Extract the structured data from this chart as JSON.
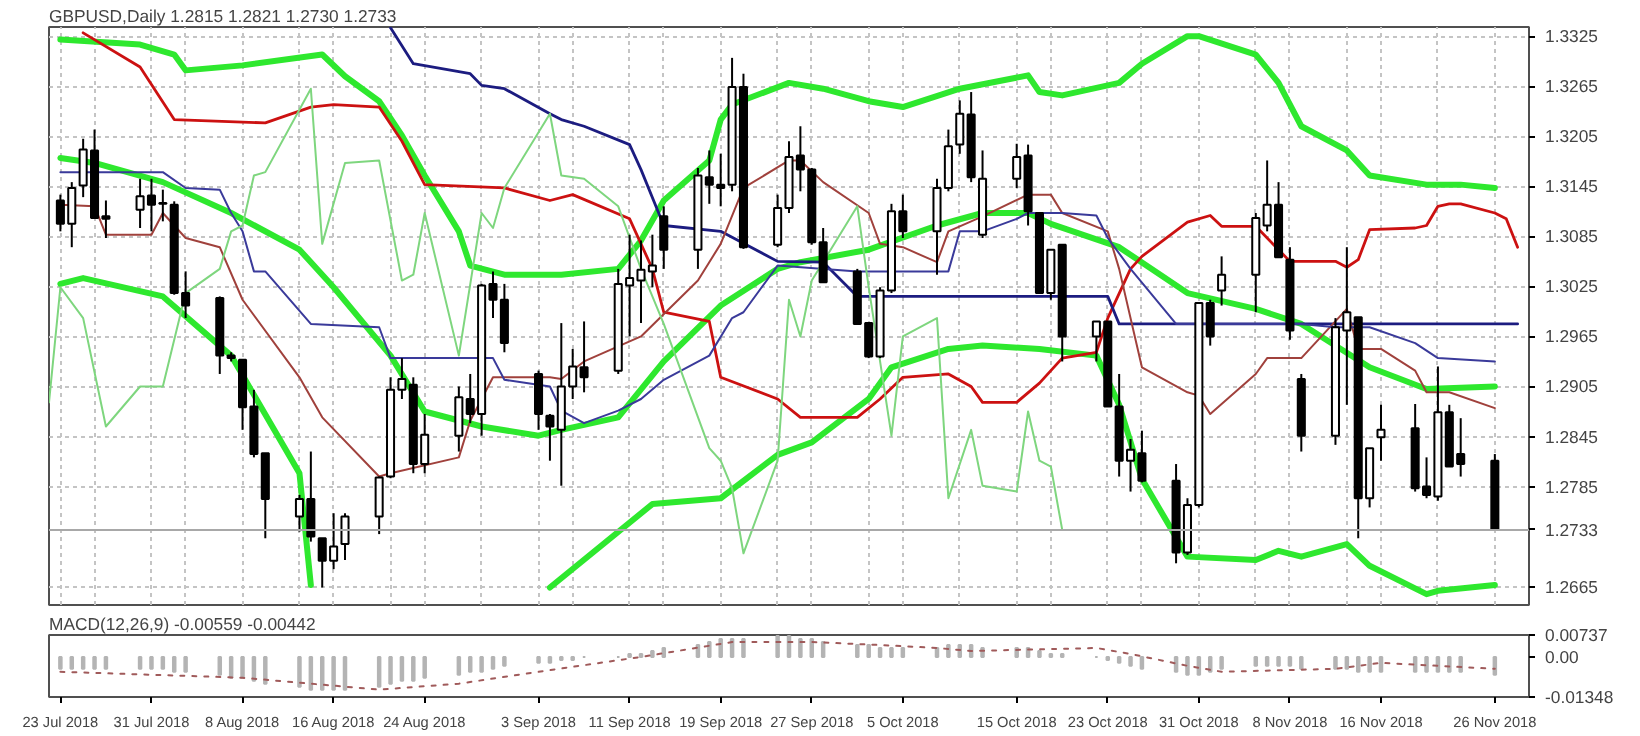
{
  "chart_data": [
    {
      "type": "candlestick",
      "title": "GBPUSD,Daily  1.2815 1.2821 1.2730 1.2733",
      "color": "#000000",
      "x": [
        "2018-07-23",
        "2018-07-24",
        "2018-07-25",
        "2018-07-26",
        "2018-07-27",
        "2018-07-30",
        "2018-07-31",
        "2018-08-01",
        "2018-08-02",
        "2018-08-03",
        "2018-08-06",
        "2018-08-07",
        "2018-08-08",
        "2018-08-09",
        "2018-08-10",
        "2018-08-13",
        "2018-08-14",
        "2018-08-15",
        "2018-08-16",
        "2018-08-17",
        "2018-08-20",
        "2018-08-21",
        "2018-08-22",
        "2018-08-23",
        "2018-08-24",
        "2018-08-27",
        "2018-08-28",
        "2018-08-29",
        "2018-08-30",
        "2018-08-31",
        "2018-09-03",
        "2018-09-04",
        "2018-09-05",
        "2018-09-06",
        "2018-09-07",
        "2018-09-10",
        "2018-09-11",
        "2018-09-12",
        "2018-09-13",
        "2018-09-14",
        "2018-09-17",
        "2018-09-18",
        "2018-09-19",
        "2018-09-20",
        "2018-09-21",
        "2018-09-24",
        "2018-09-25",
        "2018-09-26",
        "2018-09-27",
        "2018-09-28",
        "2018-10-01",
        "2018-10-02",
        "2018-10-03",
        "2018-10-04",
        "2018-10-05",
        "2018-10-08",
        "2018-10-09",
        "2018-10-10",
        "2018-10-11",
        "2018-10-12",
        "2018-10-15",
        "2018-10-16",
        "2018-10-17",
        "2018-10-18",
        "2018-10-19",
        "2018-10-22",
        "2018-10-23",
        "2018-10-24",
        "2018-10-25",
        "2018-10-26",
        "2018-10-29",
        "2018-10-30",
        "2018-10-31",
        "2018-11-01",
        "2018-11-02",
        "2018-11-05",
        "2018-11-06",
        "2018-11-07",
        "2018-11-08",
        "2018-11-09",
        "2018-11-12",
        "2018-11-13",
        "2018-11-14",
        "2018-11-15",
        "2018-11-16",
        "2018-11-19",
        "2018-11-20",
        "2018-11-21",
        "2018-11-22",
        "2018-11-23",
        "2018-11-26"
      ],
      "ohlc": [
        [
          1.3128,
          1.3135,
          1.3091,
          1.31
        ],
        [
          1.31,
          1.315,
          1.3072,
          1.3143
        ],
        [
          1.3146,
          1.3202,
          1.3132,
          1.3189
        ],
        [
          1.3188,
          1.3213,
          1.3106,
          1.3107
        ],
        [
          1.3109,
          1.3128,
          1.3083,
          1.3106
        ],
        [
          1.3117,
          1.3154,
          1.3095,
          1.3133
        ],
        [
          1.3134,
          1.3154,
          1.3091,
          1.3123
        ],
        [
          1.3124,
          1.3141,
          1.3103,
          1.3125
        ],
        [
          1.3123,
          1.3127,
          1.3015,
          1.3017
        ],
        [
          1.3017,
          1.3043,
          1.2987,
          1.3002
        ],
        [
          1.3011,
          1.3013,
          1.292,
          1.2942
        ],
        [
          1.2942,
          1.2946,
          1.2935,
          1.2939
        ],
        [
          1.2937,
          1.2937,
          1.2853,
          1.288
        ],
        [
          1.2881,
          1.2901,
          1.282,
          1.2824
        ],
        [
          1.2825,
          1.2825,
          1.2723,
          1.277
        ],
        [
          1.2749,
          1.2775,
          1.2731,
          1.277
        ],
        [
          1.277,
          1.2827,
          1.2719,
          1.2725
        ],
        [
          1.2723,
          1.2723,
          1.2664,
          1.2696
        ],
        [
          1.2696,
          1.2753,
          1.2686,
          1.2713
        ],
        [
          1.2716,
          1.2753,
          1.2697,
          1.2749
        ],
        [
          1.2749,
          1.2797,
          1.2728,
          1.2796
        ],
        [
          1.2797,
          1.2916,
          1.2795,
          1.2901
        ],
        [
          1.2901,
          1.2939,
          1.289,
          1.2914
        ],
        [
          1.2907,
          1.2916,
          1.2801,
          1.2812
        ],
        [
          1.2812,
          1.2872,
          1.2801,
          1.2847
        ],
        [
          1.2846,
          1.2905,
          1.2827,
          1.2892
        ],
        [
          1.289,
          1.292,
          1.2861,
          1.2872
        ],
        [
          1.2872,
          1.3028,
          1.2846,
          1.3026
        ],
        [
          1.3028,
          1.3043,
          1.2987,
          1.3009
        ],
        [
          1.3009,
          1.3028,
          1.2946,
          1.2957
        ],
        [
          1.292,
          1.2924,
          1.2853,
          1.2872
        ],
        [
          1.287,
          1.2872,
          1.2816,
          1.2857
        ],
        [
          1.2853,
          1.2981,
          1.2786,
          1.2905
        ],
        [
          1.2905,
          1.295,
          1.289,
          1.2929
        ],
        [
          1.2928,
          1.2983,
          1.2898,
          1.2916
        ],
        [
          1.2924,
          1.3046,
          1.292,
          1.3028
        ],
        [
          1.3026,
          1.3087,
          1.2965,
          1.3035
        ],
        [
          1.3032,
          1.308,
          1.2981,
          1.3045
        ],
        [
          1.3043,
          1.3087,
          1.3024,
          1.305
        ],
        [
          1.3109,
          1.3121,
          1.3046,
          1.3069
        ],
        [
          1.3069,
          1.3167,
          1.3046,
          1.3158
        ],
        [
          1.3156,
          1.3188,
          1.3124,
          1.3147
        ],
        [
          1.3147,
          1.3184,
          1.3121,
          1.3143
        ],
        [
          1.3147,
          1.3299,
          1.3139,
          1.3264
        ],
        [
          1.3264,
          1.328,
          1.307,
          1.3072
        ],
        [
          1.3075,
          1.3135,
          1.3072,
          1.3119
        ],
        [
          1.3119,
          1.3199,
          1.3113,
          1.318
        ],
        [
          1.3182,
          1.3217,
          1.3139,
          1.3165
        ],
        [
          1.3165,
          1.3167,
          1.3075,
          1.3078
        ],
        [
          1.3078,
          1.3095,
          1.303,
          1.303
        ],
        [
          1.3043,
          1.3046,
          1.298,
          1.298
        ],
        [
          1.2981,
          1.2981,
          1.2939,
          1.2941
        ],
        [
          1.2941,
          1.3024,
          1.2939,
          1.302
        ],
        [
          1.302,
          1.3124,
          1.3017,
          1.3115
        ],
        [
          1.3115,
          1.3135,
          1.3083,
          1.3091
        ],
        [
          1.3091,
          1.3154,
          1.3039,
          1.3143
        ],
        [
          1.3143,
          1.3213,
          1.3139,
          1.3193
        ],
        [
          1.3195,
          1.3248,
          1.3184,
          1.3232
        ],
        [
          1.3231,
          1.3258,
          1.315,
          1.3156
        ],
        [
          1.3087,
          1.3188,
          1.3083,
          1.3154
        ],
        [
          1.3154,
          1.3196,
          1.3143,
          1.318
        ],
        [
          1.3182,
          1.3195,
          1.3098,
          1.3115
        ],
        [
          1.3113,
          1.3113,
          1.3017,
          1.3017
        ],
        [
          1.3017,
          1.3069,
          1.3009,
          1.3069
        ],
        [
          1.3075,
          1.3075,
          1.2935,
          1.2965
        ],
        [
          1.2965,
          1.2983,
          1.2935,
          1.2983
        ],
        [
          1.2983,
          1.2983,
          1.2881,
          1.2881
        ],
        [
          1.2881,
          1.292,
          1.2797,
          1.2816
        ],
        [
          1.2816,
          1.2842,
          1.2779,
          1.2829
        ],
        [
          1.2825,
          1.2852,
          1.279,
          1.2792
        ],
        [
          1.2792,
          1.2812,
          1.2693,
          1.2706
        ],
        [
          1.2706,
          1.2771,
          1.2703,
          1.2763
        ],
        [
          1.2763,
          1.3005,
          1.276,
          1.3005
        ],
        [
          1.3005,
          1.3009,
          1.2954,
          1.2965
        ],
        [
          1.302,
          1.3061,
          1.3002,
          1.3039
        ],
        [
          1.3039,
          1.3113,
          1.2994,
          1.3107
        ],
        [
          1.3098,
          1.3176,
          1.3091,
          1.3123
        ],
        [
          1.3123,
          1.315,
          1.306,
          1.306
        ],
        [
          1.3057,
          1.3072,
          1.2961,
          1.2972
        ],
        [
          1.2914,
          1.292,
          1.2827,
          1.2846
        ],
        [
          1.2846,
          1.2987,
          1.2835,
          1.2976
        ],
        [
          1.2972,
          1.3072,
          1.2883,
          1.2994
        ],
        [
          1.2988,
          1.2988,
          1.2723,
          1.2771
        ],
        [
          1.2771,
          1.2831,
          1.276,
          1.2831
        ],
        [
          1.2844,
          1.2883,
          1.2816,
          1.2853
        ],
        [
          1.2855,
          1.2884,
          1.2779,
          1.2783
        ],
        [
          1.2785,
          1.282,
          1.2771,
          1.2775
        ],
        [
          1.2773,
          1.2929,
          1.2768,
          1.2874
        ],
        [
          1.2874,
          1.2883,
          1.2809,
          1.2809
        ],
        [
          1.2824,
          1.2867,
          1.2797,
          1.2812
        ],
        [
          1.2816,
          1.2824,
          1.2733,
          1.2733
        ]
      ],
      "series": [
        {
          "type": "line",
          "color": "#2ee82e",
          "x": [
            "2018-07-23",
            "2018-07-30",
            "2018-08-02",
            "2018-08-03",
            "2018-08-08",
            "2018-08-15",
            "2018-08-17",
            "2018-08-20",
            "2018-08-22",
            "2018-08-24",
            "2018-08-27",
            "2018-08-28",
            "2018-08-31",
            "2018-09-05",
            "2018-09-10",
            "2018-09-12",
            "2018-09-14",
            "2018-09-18",
            "2018-09-19",
            "2018-09-20",
            "2018-09-25",
            "2018-09-28",
            "2018-10-02",
            "2018-10-05",
            "2018-10-10",
            "2018-10-16",
            "2018-10-17",
            "2018-10-19",
            "2018-10-24",
            "2018-10-26",
            "2018-10-30",
            "2018-10-31",
            "2018-11-05",
            "2018-11-07",
            "2018-11-09",
            "2018-11-13",
            "2018-11-15",
            "2018-11-20",
            "2018-11-23",
            "2018-11-26"
          ],
          "values": [
            1.3321,
            1.3315,
            1.3303,
            1.3284,
            1.329,
            1.3303,
            1.3277,
            1.3247,
            1.3206,
            1.3158,
            1.3091,
            1.305,
            1.3039,
            1.3039,
            1.3046,
            1.308,
            1.3128,
            1.3176,
            1.3225,
            1.3243,
            1.3269,
            1.3262,
            1.3247,
            1.324,
            1.3262,
            1.3278,
            1.3258,
            1.3254,
            1.3269,
            1.3292,
            1.3325,
            1.3325,
            1.3303,
            1.3269,
            1.3217,
            1.3188,
            1.3158,
            1.3147,
            1.3147,
            1.3143
          ]
        },
        {
          "type": "line",
          "color": "#2ee82e",
          "x": [
            "2018-07-23",
            "2018-07-26",
            "2018-08-01",
            "2018-08-07",
            "2018-08-13",
            "2018-08-16",
            "2018-08-21",
            "2018-08-24",
            "2018-08-29",
            "2018-09-03",
            "2018-09-05",
            "2018-09-10",
            "2018-09-14",
            "2018-09-19",
            "2018-09-24",
            "2018-09-26",
            "2018-10-02",
            "2018-10-08",
            "2018-10-12",
            "2018-10-16",
            "2018-10-18",
            "2018-10-24",
            "2018-10-30",
            "2018-11-05",
            "2018-11-09",
            "2018-11-15",
            "2018-11-20",
            "2018-11-26"
          ],
          "values": [
            1.3179,
            1.3173,
            1.315,
            1.3113,
            1.3069,
            1.3024,
            1.2942,
            1.2875,
            1.2857,
            1.2846,
            1.2853,
            1.2868,
            1.2935,
            1.3002,
            1.3046,
            1.3054,
            1.3069,
            1.3098,
            1.3113,
            1.3113,
            1.31,
            1.3072,
            1.3017,
            1.2998,
            1.298,
            1.2928,
            1.2902,
            1.2905
          ]
        },
        {
          "type": "line",
          "color": "#2ee82e",
          "x": [
            "2018-07-23",
            "2018-07-25",
            "2018-08-01",
            "2018-08-07",
            "2018-08-13",
            "2018-08-14",
            "2018-08-15",
            "2018-09-04",
            "2018-09-13",
            "2018-09-19",
            "2018-09-24",
            "2018-09-27",
            "2018-10-02",
            "2018-10-04",
            "2018-10-09",
            "2018-10-12",
            "2018-10-17",
            "2018-10-22",
            "2018-10-24",
            "2018-10-26",
            "2018-10-30",
            "2018-11-05",
            "2018-11-07",
            "2018-11-09",
            "2018-11-13",
            "2018-11-15",
            "2018-11-20",
            "2018-11-21",
            "2018-11-26"
          ],
          "values": [
            1.3028,
            1.3035,
            1.3013,
            1.2942,
            1.2801,
            1.2667,
            null,
            1.2664,
            1.2764,
            1.2771,
            1.2823,
            1.2838,
            1.289,
            1.2928,
            1.295,
            1.2954,
            1.295,
            1.2942,
            1.2883,
            1.2794,
            1.2701,
            1.2697,
            1.2708,
            1.2701,
            1.2716,
            1.269,
            1.2656,
            1.266,
            1.2667
          ]
        },
        {
          "type": "line",
          "color": "#cc1111",
          "x": [
            "2018-07-25",
            "2018-07-30",
            "2018-08-02",
            "2018-08-10",
            "2018-08-14",
            "2018-08-16",
            "2018-08-20",
            "2018-08-22",
            "2018-08-24",
            "2018-08-31",
            "2018-09-04",
            "2018-09-06",
            "2018-09-11",
            "2018-09-13",
            "2018-09-14",
            "2018-09-18",
            "2018-09-19",
            "2018-09-24",
            "2018-09-26",
            "2018-10-01",
            "2018-10-03",
            "2018-10-05",
            "2018-10-09",
            "2018-10-11",
            "2018-10-12",
            "2018-10-15",
            "2018-10-17",
            "2018-10-19",
            "2018-10-22",
            "2018-10-23",
            "2018-10-25",
            "2018-10-26",
            "2018-10-30",
            "2018-11-01",
            "2018-11-02",
            "2018-11-05",
            "2018-11-07",
            "2018-11-08",
            "2018-11-12",
            "2018-11-13",
            "2018-11-14",
            "2018-11-15",
            "2018-11-19",
            "2018-11-20",
            "2018-11-21",
            "2018-11-22",
            "2018-11-23",
            "2018-11-26",
            "2018-11-27",
            "2018-11-28"
          ],
          "values": [
            1.3329,
            1.3288,
            1.3225,
            1.3221,
            1.324,
            1.3243,
            1.324,
            1.3199,
            1.3147,
            1.3143,
            1.3128,
            1.3135,
            1.3106,
            1.3046,
            1.2994,
            1.2983,
            1.2916,
            1.289,
            1.2868,
            1.2868,
            1.289,
            1.2916,
            1.292,
            1.2905,
            1.2886,
            1.2886,
            1.2909,
            1.2939,
            1.2946,
            1.2987,
            1.3046,
            1.3061,
            1.3102,
            1.311,
            1.3097,
            1.3097,
            1.3069,
            1.3055,
            1.3055,
            1.3048,
            1.3057,
            1.3093,
            1.3095,
            1.3098,
            1.3121,
            1.3124,
            1.3124,
            1.3113,
            1.3106,
            1.3072
          ]
        },
        {
          "type": "line",
          "color": "#1c1c80",
          "x": [
            "2018-08-21",
            "2018-08-23",
            "2018-08-28",
            "2018-08-29",
            "2018-08-31",
            "2018-09-04",
            "2018-09-05",
            "2018-09-07",
            "2018-09-11",
            "2018-09-12",
            "2018-09-14",
            "2018-09-19",
            "2018-09-24",
            "2018-09-28",
            "2018-10-01",
            "2018-10-23",
            "2018-10-24",
            "2018-11-28"
          ],
          "values": [
            1.3335,
            1.3292,
            1.328,
            1.3266,
            1.3262,
            1.3232,
            1.3225,
            1.3217,
            1.3195,
            1.3165,
            1.3098,
            1.3091,
            1.3055,
            1.3054,
            1.3013,
            1.3013,
            1.298,
            1.298
          ]
        },
        {
          "type": "line",
          "color": "#a0413c",
          "x": [
            "2018-07-23",
            "2018-07-26",
            "2018-07-27",
            "2018-07-31",
            "2018-08-01",
            "2018-08-03",
            "2018-08-06",
            "2018-08-08",
            "2018-08-13",
            "2018-08-15",
            "2018-08-20",
            "2018-08-21",
            "2018-08-27",
            "2018-08-28",
            "2018-08-30",
            "2018-09-04",
            "2018-09-05",
            "2018-09-07",
            "2018-09-12",
            "2018-09-17",
            "2018-09-19",
            "2018-09-21",
            "2018-09-25",
            "2018-09-26",
            "2018-09-28",
            "2018-10-02",
            "2018-10-03",
            "2018-10-05",
            "2018-10-08",
            "2018-10-09",
            "2018-10-12",
            "2018-10-16",
            "2018-10-18",
            "2018-10-19",
            "2018-10-23",
            "2018-10-24",
            "2018-10-26",
            "2018-10-30",
            "2018-10-31",
            "2018-11-01",
            "2018-11-05",
            "2018-11-06",
            "2018-11-09",
            "2018-11-13",
            "2018-11-14",
            "2018-11-16",
            "2018-11-19",
            "2018-11-20",
            "2018-11-22",
            "2018-11-26"
          ],
          "values": [
            1.3123,
            1.3121,
            1.3087,
            1.3087,
            1.3113,
            1.3083,
            1.3072,
            1.3009,
            1.2916,
            1.2868,
            1.2797,
            1.2801,
            1.282,
            1.2864,
            1.2916,
            1.2916,
            1.2914,
            1.2935,
            1.2965,
            1.3032,
            1.3076,
            1.3143,
            1.3176,
            1.3176,
            1.315,
            1.3113,
            1.3076,
            1.3072,
            1.3054,
            1.3091,
            1.3109,
            1.3135,
            1.3135,
            1.3113,
            1.3091,
            1.3046,
            1.2928,
            1.2898,
            1.2894,
            1.2872,
            1.292,
            1.2939,
            1.2939,
            1.2998,
            1.295,
            1.295,
            1.2924,
            1.2898,
            1.2898,
            1.2879
          ]
        },
        {
          "type": "line",
          "color": "#3a3a9a",
          "x": [
            "2018-07-23",
            "2018-08-01",
            "2018-08-03",
            "2018-08-06",
            "2018-08-07",
            "2018-08-08",
            "2018-08-09",
            "2018-08-10",
            "2018-08-14",
            "2018-08-20",
            "2018-08-21",
            "2018-08-30",
            "2018-08-31",
            "2018-09-04",
            "2018-09-05",
            "2018-09-07",
            "2018-09-10",
            "2018-09-12",
            "2018-09-14",
            "2018-09-18",
            "2018-09-20",
            "2018-09-21",
            "2018-09-24",
            "2018-10-01",
            "2018-10-09",
            "2018-10-10",
            "2018-10-12",
            "2018-10-15",
            "2018-10-16",
            "2018-10-19",
            "2018-10-22",
            "2018-10-23",
            "2018-10-25",
            "2018-10-29",
            "2018-11-09",
            "2018-11-12",
            "2018-11-15",
            "2018-11-19",
            "2018-11-21",
            "2018-11-26"
          ],
          "values": [
            1.3162,
            1.3162,
            1.3143,
            1.3141,
            1.3113,
            1.3091,
            1.3043,
            1.3043,
            1.298,
            1.2976,
            1.2939,
            1.2939,
            1.2913,
            1.2905,
            1.2876,
            1.2861,
            1.2876,
            1.289,
            1.2913,
            1.2942,
            1.2987,
            1.2994,
            1.305,
            1.3043,
            1.3043,
            1.3091,
            1.3091,
            1.3106,
            1.3113,
            1.3113,
            1.311,
            1.3083,
            1.3046,
            1.298,
            1.298,
            1.2976,
            1.2976,
            1.2957,
            1.2939,
            1.2935
          ]
        },
        {
          "type": "line",
          "color": "#7ed67e",
          "x": [
            "2018-07-22",
            "2018-07-23",
            "2018-07-25",
            "2018-07-27",
            "2018-07-30",
            "2018-08-01",
            "2018-08-03",
            "2018-08-06",
            "2018-08-07",
            "2018-08-08",
            "2018-08-09",
            "2018-08-10",
            "2018-08-14",
            "2018-08-15",
            "2018-08-17",
            "2018-08-20",
            "2018-08-22",
            "2018-08-23",
            "2018-08-24",
            "2018-08-27",
            "2018-08-29",
            "2018-08-30",
            "2018-08-31",
            "2018-09-04",
            "2018-09-05",
            "2018-09-07",
            "2018-09-10",
            "2018-09-12",
            "2018-09-14",
            "2018-09-18",
            "2018-09-19",
            "2018-09-20",
            "2018-09-21",
            "2018-09-24",
            "2018-09-25",
            "2018-09-26",
            "2018-09-27",
            "2018-10-01",
            "2018-10-02",
            "2018-10-04",
            "2018-10-05",
            "2018-10-08",
            "2018-10-09",
            "2018-10-11",
            "2018-10-12",
            "2018-10-15",
            "2018-10-16",
            "2018-10-17",
            "2018-10-18",
            "2018-10-19"
          ],
          "values": [
            1.2886,
            1.3024,
            1.2987,
            1.2857,
            1.2905,
            1.2905,
            1.3017,
            1.3046,
            1.3091,
            1.3098,
            1.3158,
            1.3162,
            1.3262,
            1.3076,
            1.3173,
            1.3176,
            1.3032,
            1.3039,
            1.3113,
            1.2942,
            1.3113,
            1.3095,
            1.3143,
            1.3232,
            1.3158,
            1.3154,
            1.3121,
            1.3046,
            1.298,
            1.2831,
            1.2816,
            1.2783,
            1.2705,
            1.2816,
            1.3009,
            1.2965,
            1.3032,
            1.3121,
            1.3024,
            1.2846,
            1.2965,
            1.2987,
            1.2771,
            1.2853,
            1.2786,
            1.2779,
            1.2875,
            1.2816,
            1.2809,
            1.2733
          ]
        }
      ],
      "ref_lines": [
        {
          "axis": "y",
          "value": 1.2733,
          "label": "1.2733",
          "color": "#a8a8a8"
        }
      ],
      "xlim": [
        "2018-07-22",
        "2018-11-29"
      ],
      "ylim": [
        1.2643,
        1.3336
      ],
      "xticks": [
        {
          "value": "2018-07-23",
          "label": null
        },
        {
          "value": "2018-07-26",
          "label": null
        },
        {
          "value": "2018-07-31",
          "label": null
        },
        {
          "value": "2018-08-03",
          "label": null
        },
        {
          "value": "2018-08-08",
          "label": null
        },
        {
          "value": "2018-08-13",
          "label": null
        },
        {
          "value": "2018-08-16",
          "label": null
        },
        {
          "value": "2018-08-21",
          "label": null
        },
        {
          "value": "2018-08-24",
          "label": null
        },
        {
          "value": "2018-08-29",
          "label": null
        },
        {
          "value": "2018-09-03",
          "label": null
        },
        {
          "value": "2018-09-06",
          "label": null
        },
        {
          "value": "2018-09-11",
          "label": null
        },
        {
          "value": "2018-09-14",
          "label": null
        },
        {
          "value": "2018-09-19",
          "label": null
        },
        {
          "value": "2018-09-24",
          "label": null
        },
        {
          "value": "2018-09-27",
          "label": null
        },
        {
          "value": "2018-10-02",
          "label": null
        },
        {
          "value": "2018-10-05",
          "label": null
        },
        {
          "value": "2018-10-10",
          "label": null
        },
        {
          "value": "2018-10-15",
          "label": null
        },
        {
          "value": "2018-10-18",
          "label": null
        },
        {
          "value": "2018-10-23",
          "label": null
        },
        {
          "value": "2018-10-26",
          "label": null
        },
        {
          "value": "2018-10-31",
          "label": null
        },
        {
          "value": "2018-11-05",
          "label": null
        },
        {
          "value": "2018-11-08",
          "label": null
        },
        {
          "value": "2018-11-13",
          "label": null
        },
        {
          "value": "2018-11-16",
          "label": null
        },
        {
          "value": "2018-11-21",
          "label": null
        },
        {
          "value": "2018-11-26",
          "label": null
        }
      ],
      "yticks": [
        1.3325,
        1.3265,
        1.3205,
        1.3145,
        1.3085,
        1.3025,
        1.2965,
        1.2905,
        1.2845,
        1.2785,
        1.2665
      ],
      "tick_labels": "y",
      "grid": true
    },
    {
      "type": "bar",
      "title": "MACD(12,26,9) -0.00559 -0.00442",
      "x": [
        "2018-07-23",
        "2018-07-24",
        "2018-07-25",
        "2018-07-26",
        "2018-07-27",
        "2018-07-30",
        "2018-07-31",
        "2018-08-01",
        "2018-08-02",
        "2018-08-03",
        "2018-08-06",
        "2018-08-07",
        "2018-08-08",
        "2018-08-09",
        "2018-08-10",
        "2018-08-13",
        "2018-08-14",
        "2018-08-15",
        "2018-08-16",
        "2018-08-17",
        "2018-08-20",
        "2018-08-21",
        "2018-08-22",
        "2018-08-23",
        "2018-08-24",
        "2018-08-27",
        "2018-08-28",
        "2018-08-29",
        "2018-08-30",
        "2018-08-31",
        "2018-09-03",
        "2018-09-04",
        "2018-09-05",
        "2018-09-06",
        "2018-09-07",
        "2018-09-10",
        "2018-09-11",
        "2018-09-12",
        "2018-09-13",
        "2018-09-14",
        "2018-09-17",
        "2018-09-18",
        "2018-09-19",
        "2018-09-20",
        "2018-09-21",
        "2018-09-24",
        "2018-09-25",
        "2018-09-26",
        "2018-09-27",
        "2018-09-28",
        "2018-10-01",
        "2018-10-02",
        "2018-10-03",
        "2018-10-04",
        "2018-10-05",
        "2018-10-08",
        "2018-10-09",
        "2018-10-10",
        "2018-10-11",
        "2018-10-12",
        "2018-10-15",
        "2018-10-16",
        "2018-10-17",
        "2018-10-18",
        "2018-10-19",
        "2018-10-22",
        "2018-10-23",
        "2018-10-24",
        "2018-10-25",
        "2018-10-26",
        "2018-10-29",
        "2018-10-30",
        "2018-10-31",
        "2018-11-01",
        "2018-11-02",
        "2018-11-05",
        "2018-11-06",
        "2018-11-07",
        "2018-11-08",
        "2018-11-09",
        "2018-11-12",
        "2018-11-13",
        "2018-11-14",
        "2018-11-15",
        "2018-11-16",
        "2018-11-19",
        "2018-11-20",
        "2018-11-21",
        "2018-11-22",
        "2018-11-23",
        "2018-11-26"
      ],
      "series": [
        {
          "type": "bar",
          "color": "#b4b4b4",
          "values": [
            -0.004,
            -0.004,
            -0.004,
            -0.004,
            -0.004,
            -0.004,
            -0.004,
            -0.004,
            -0.005,
            -0.005,
            -0.006,
            -0.007,
            -0.007,
            -0.008,
            -0.009,
            -0.01,
            -0.011,
            -0.011,
            -0.011,
            -0.011,
            -0.01,
            -0.009,
            -0.008,
            -0.008,
            -0.007,
            -0.006,
            -0.005,
            -0.005,
            -0.004,
            -0.003,
            -0.002,
            -0.002,
            -0.001,
            -0.001,
            0.0,
            0.0,
            0.001,
            0.001,
            0.002,
            0.003,
            0.004,
            0.005,
            0.006,
            0.006,
            0.006,
            0.007,
            0.007,
            0.006,
            0.006,
            0.005,
            0.004,
            0.004,
            0.003,
            0.003,
            0.003,
            0.003,
            0.004,
            0.004,
            0.004,
            0.003,
            0.003,
            0.003,
            0.002,
            0.001,
            0.001,
            0.0,
            -0.001,
            -0.002,
            -0.003,
            -0.004,
            -0.005,
            -0.006,
            -0.006,
            -0.005,
            -0.004,
            -0.003,
            -0.003,
            -0.003,
            -0.003,
            -0.004,
            -0.004,
            -0.004,
            -0.005,
            -0.005,
            -0.005,
            -0.005,
            -0.005,
            -0.005,
            -0.005,
            -0.005,
            -0.006
          ]
        },
        {
          "type": "line",
          "color": "#a05a5a",
          "line_style": "dotted",
          "x": [
            "2018-07-23",
            "2018-08-08",
            "2018-08-20",
            "2018-08-27",
            "2018-09-03",
            "2018-09-12",
            "2018-09-20",
            "2018-09-27",
            "2018-10-03",
            "2018-10-08",
            "2018-10-11",
            "2018-10-22",
            "2018-10-25",
            "2018-10-30",
            "2018-11-02",
            "2018-11-12",
            "2018-11-16",
            "2018-11-26"
          ],
          "values": [
            -0.005,
            -0.007,
            -0.011,
            -0.009,
            -0.005,
            0.0,
            0.005,
            0.005,
            0.004,
            0.003,
            0.002,
            0.003,
            0.001,
            -0.003,
            -0.005,
            -0.004,
            -0.002,
            -0.004
          ]
        }
      ],
      "xlim": [
        "2018-07-22",
        "2018-11-29"
      ],
      "ylim": [
        -0.01348,
        0.00737
      ],
      "xticks": [
        {
          "value": "2018-07-23",
          "label": "23 Jul 2018"
        },
        {
          "value": "2018-07-31",
          "label": "31 Jul 2018"
        },
        {
          "value": "2018-08-08",
          "label": "8 Aug 2018"
        },
        {
          "value": "2018-08-16",
          "label": "16 Aug 2018"
        },
        {
          "value": "2018-08-24",
          "label": "24 Aug 2018"
        },
        {
          "value": "2018-09-03",
          "label": "3 Sep 2018"
        },
        {
          "value": "2018-09-11",
          "label": "11 Sep 2018"
        },
        {
          "value": "2018-09-19",
          "label": "19 Sep 2018"
        },
        {
          "value": "2018-09-27",
          "label": "27 Sep 2018"
        },
        {
          "value": "2018-10-05",
          "label": "5 Oct 2018"
        },
        {
          "value": "2018-10-15",
          "label": "15 Oct 2018"
        },
        {
          "value": "2018-10-23",
          "label": "23 Oct 2018"
        },
        {
          "value": "2018-10-31",
          "label": "31 Oct 2018"
        },
        {
          "value": "2018-11-08",
          "label": "8 Nov 2018"
        },
        {
          "value": "2018-11-16",
          "label": "16 Nov 2018"
        },
        {
          "value": "2018-11-26",
          "label": "26 Nov 2018"
        }
      ],
      "yticks": [
        0.00737,
        {
          "value": 0,
          "label": "0.00"
        },
        -0.01348
      ]
    }
  ]
}
